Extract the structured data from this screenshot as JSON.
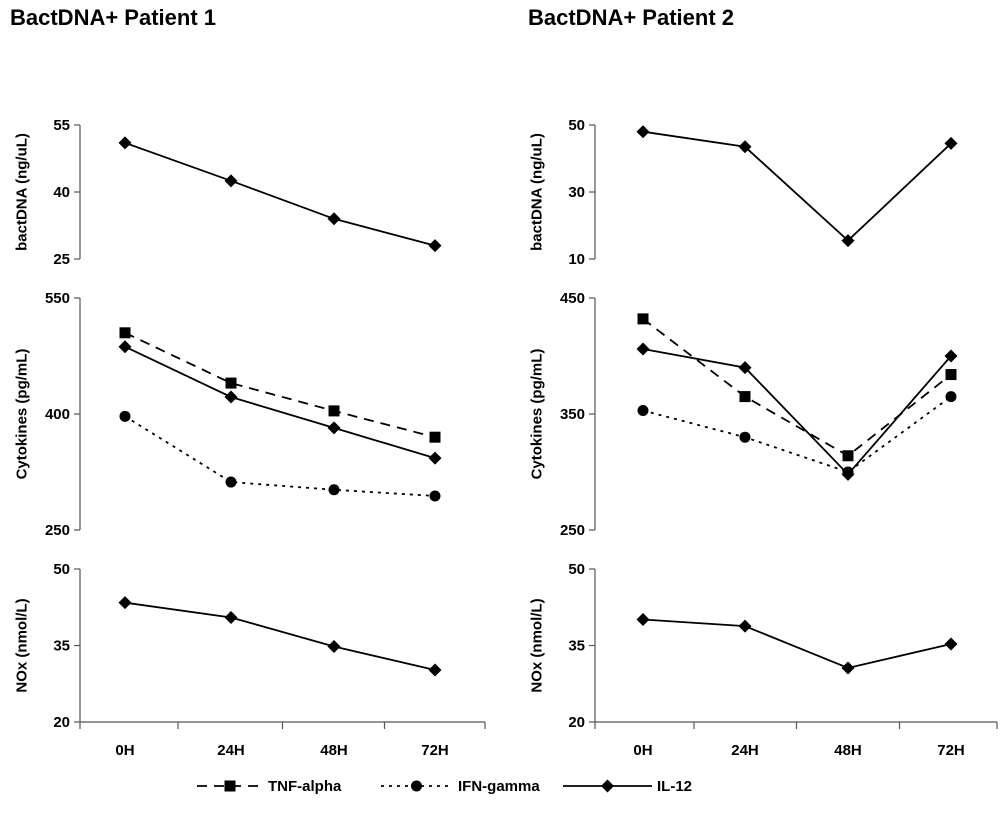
{
  "chart_data": {
    "type": "line",
    "categories": [
      "0H",
      "24H",
      "48H",
      "72H"
    ],
    "legend": {
      "placement": "bottom",
      "entries": [
        {
          "series": "TNF-alpha",
          "label": "TNF-alpha",
          "dash": "10,7",
          "marker": "square"
        },
        {
          "series": "IFN-gamma",
          "label": "IFN-gamma",
          "dash": "3,5",
          "marker": "circle"
        },
        {
          "series": "IL-12",
          "label": "IL-12",
          "dash": "",
          "marker": "diamond"
        }
      ]
    },
    "panels": [
      {
        "title": "BactDNA+ Patient 1",
        "plots": [
          {
            "ylabel": "bactDNA (ng/uL)",
            "ylim": [
              25,
              55
            ],
            "yticks": [
              "25",
              "40",
              "55"
            ],
            "series": [
              {
                "marker": "diamond",
                "dash": "",
                "values": [
                  51,
                  42.5,
                  34,
                  28
                ]
              }
            ]
          },
          {
            "ylabel": "Cytokines (pg/mL)",
            "ylim": [
              250,
              550
            ],
            "yticks": [
              "250",
              "400",
              "550"
            ],
            "series": [
              {
                "name": "TNF-alpha",
                "marker": "square",
                "dash": "10,7",
                "values": [
                  505,
                  440,
                  404,
                  370
                ]
              },
              {
                "name": "IFN-gamma",
                "marker": "circle",
                "dash": "3,5",
                "values": [
                  397,
                  312,
                  302,
                  294
                ]
              },
              {
                "name": "IL-12",
                "marker": "diamond",
                "dash": "",
                "values": [
                  487,
                  422,
                  382,
                  343
                ]
              }
            ]
          },
          {
            "ylabel": "NOx (nmol/L)",
            "ylim": [
              20,
              50
            ],
            "yticks": [
              "20",
              "35",
              "50"
            ],
            "series": [
              {
                "marker": "diamond",
                "dash": "",
                "values": [
                  43.4,
                  40.5,
                  34.8,
                  30.2
                ]
              }
            ]
          }
        ]
      },
      {
        "title": "BactDNA+ Patient 2",
        "plots": [
          {
            "ylabel": "bactDNA (ng/uL)",
            "ylim": [
              10,
              50
            ],
            "yticks": [
              "10",
              "30",
              "50"
            ],
            "series": [
              {
                "marker": "diamond",
                "dash": "",
                "values": [
                  48,
                  43.5,
                  15.5,
                  44.5
                ]
              }
            ]
          },
          {
            "ylabel": "Cytokines (pg/mL)",
            "ylim": [
              250,
              450
            ],
            "yticks": [
              "250",
              "350",
              "450"
            ],
            "series": [
              {
                "name": "TNF-alpha",
                "marker": "square",
                "dash": "10,7",
                "values": [
                  432,
                  365,
                  314,
                  384
                ]
              },
              {
                "name": "IFN-gamma",
                "marker": "circle",
                "dash": "3,5",
                "values": [
                  353,
                  330,
                  300,
                  365
                ]
              },
              {
                "name": "IL-12",
                "marker": "diamond",
                "dash": "",
                "values": [
                  406,
                  390,
                  298,
                  400
                ]
              }
            ]
          },
          {
            "ylabel": "NOx (nmol/L)",
            "ylim": [
              20,
              50
            ],
            "yticks": [
              "20",
              "35",
              "50"
            ],
            "series": [
              {
                "marker": "diamond",
                "dash": "",
                "values": [
                  40.1,
                  38.8,
                  30.6,
                  35.3
                ]
              }
            ]
          }
        ]
      }
    ]
  }
}
